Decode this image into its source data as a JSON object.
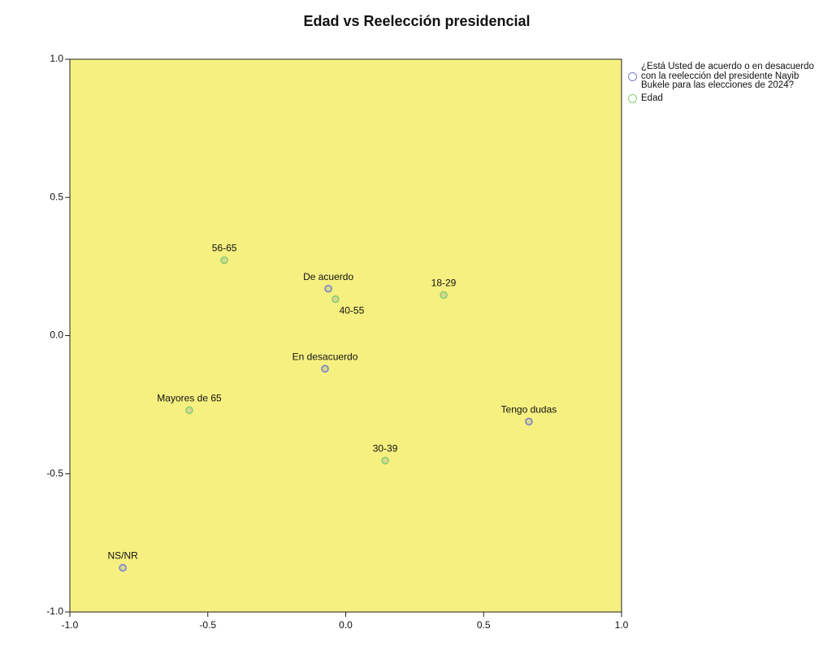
{
  "chart_data": {
    "type": "scatter",
    "title": "Edad vs Reelección presidencial",
    "series": [
      {
        "name": "¿Está Usted de acuerdo o en desacuerdo con la reelección del presidente Nayib Bukele para las elecciones de 2024?",
        "color": "#7882c8",
        "labels": [
          "De acuerdo",
          "En desacuerdo",
          "Tengo dudas",
          "NS/NR"
        ],
        "x": [
          -0.063,
          -0.075,
          0.664,
          -0.808
        ],
        "values": [
          0.17,
          -0.12,
          -0.311,
          -0.84
        ]
      },
      {
        "name": "Edad",
        "color": "#86cf72",
        "labels": [
          "56-65",
          "40-55",
          "18-29",
          "Mayores de 65",
          "30-39"
        ],
        "x": [
          -0.44,
          -0.037,
          0.355,
          -0.567,
          0.143
        ],
        "values": [
          0.273,
          0.132,
          0.147,
          -0.27,
          -0.452
        ]
      }
    ],
    "xlim": [
      -1,
      1
    ],
    "ylim": [
      -1,
      1
    ],
    "xticks": [
      {
        "value": -1,
        "label": "-1.0"
      },
      -0.5,
      {
        "value": 0,
        "label": "0.0"
      },
      0.5,
      {
        "value": 1,
        "label": "1.0"
      }
    ],
    "yticks": [
      {
        "value": -1,
        "label": "-1.0"
      },
      -0.5,
      {
        "value": 0,
        "label": "0.0"
      },
      0.5,
      {
        "value": 1,
        "label": "1.0"
      }
    ],
    "grid": false,
    "legend": "right",
    "background": "#f6f081"
  }
}
